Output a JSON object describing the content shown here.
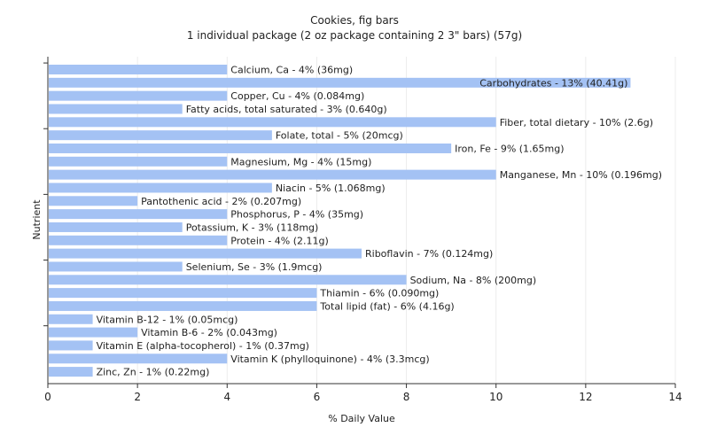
{
  "chart_data": {
    "type": "bar",
    "orientation": "horizontal",
    "title": "Cookies, fig bars",
    "subtitle": "1 individual package (2 oz package containing 2 3\" bars) (57g)",
    "xlabel": "% Daily Value",
    "ylabel": "Nutrient",
    "xlim": [
      0,
      14
    ],
    "xticks": [
      0,
      2,
      4,
      6,
      8,
      10,
      12,
      14
    ],
    "grid": true,
    "bar_color": "#a4c2f4",
    "categories": [
      "Calcium, Ca",
      "Carbohydrates",
      "Copper, Cu",
      "Fatty acids, total saturated",
      "Fiber, total dietary",
      "Folate, total",
      "Iron, Fe",
      "Magnesium, Mg",
      "Manganese, Mn",
      "Niacin",
      "Pantothenic acid",
      "Phosphorus, P",
      "Potassium, K",
      "Protein",
      "Riboflavin",
      "Selenium, Se",
      "Sodium, Na",
      "Thiamin",
      "Total lipid (fat)",
      "Vitamin B-12",
      "Vitamin B-6",
      "Vitamin E (alpha-tocopherol)",
      "Vitamin K (phylloquinone)",
      "Zinc, Zn"
    ],
    "values": [
      4,
      13,
      4,
      3,
      10,
      5,
      9,
      4,
      10,
      5,
      2,
      4,
      3,
      4,
      7,
      3,
      8,
      6,
      6,
      1,
      2,
      1,
      4,
      1
    ],
    "labels": [
      "Calcium, Ca - 4% (36mg)",
      "Carbohydrates - 13% (40.41g)",
      "Copper, Cu - 4% (0.084mg)",
      "Fatty acids, total saturated - 3% (0.640g)",
      "Fiber, total dietary - 10% (2.6g)",
      "Folate, total - 5% (20mcg)",
      "Iron, Fe - 9% (1.65mg)",
      "Magnesium, Mg - 4% (15mg)",
      "Manganese, Mn - 10% (0.196mg)",
      "Niacin - 5% (1.068mg)",
      "Pantothenic acid - 2% (0.207mg)",
      "Phosphorus, P - 4% (35mg)",
      "Potassium, K - 3% (118mg)",
      "Protein - 4% (2.11g)",
      "Riboflavin - 7% (0.124mg)",
      "Selenium, Se - 3% (1.9mcg)",
      "Sodium, Na - 8% (200mg)",
      "Thiamin - 6% (0.090mg)",
      "Total lipid (fat) - 6% (4.16g)",
      "Vitamin B-12 - 1% (0.05mcg)",
      "Vitamin B-6 - 2% (0.043mg)",
      "Vitamin E (alpha-tocopherol) - 1% (0.37mg)",
      "Vitamin K (phylloquinone) - 4% (3.3mcg)",
      "Zinc, Zn - 1% (0.22mg)"
    ]
  }
}
